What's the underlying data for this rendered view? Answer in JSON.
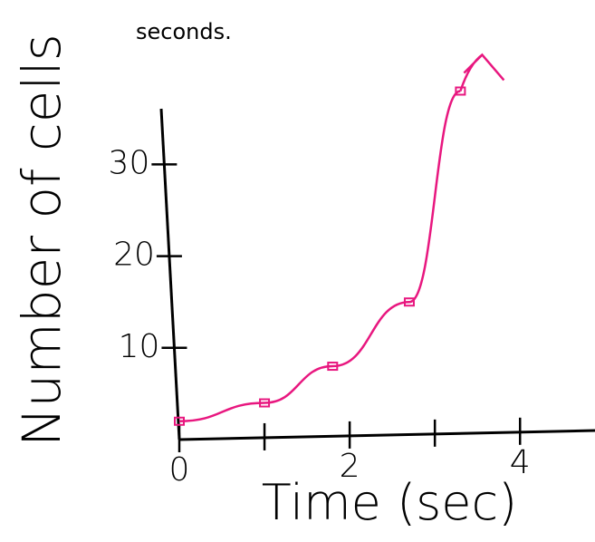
{
  "chart_data": {
    "type": "line",
    "title": "seconds.",
    "x_label": "Time (sec)",
    "y_label": "Number of cells",
    "x": [
      0,
      1,
      1.8,
      2.7,
      3.3
    ],
    "series": [
      {
        "color": "#e8177f",
        "values": [
          2,
          4,
          8,
          15,
          38
        ]
      }
    ],
    "xlim": [
      0,
      4.88
    ],
    "ylim": [
      0,
      42
    ],
    "xticks": [
      0,
      {
        "value": 1,
        "label": null
      },
      2,
      {
        "value": 3,
        "label": null
      },
      4
    ],
    "yticks": [
      10,
      20,
      30
    ]
  }
}
